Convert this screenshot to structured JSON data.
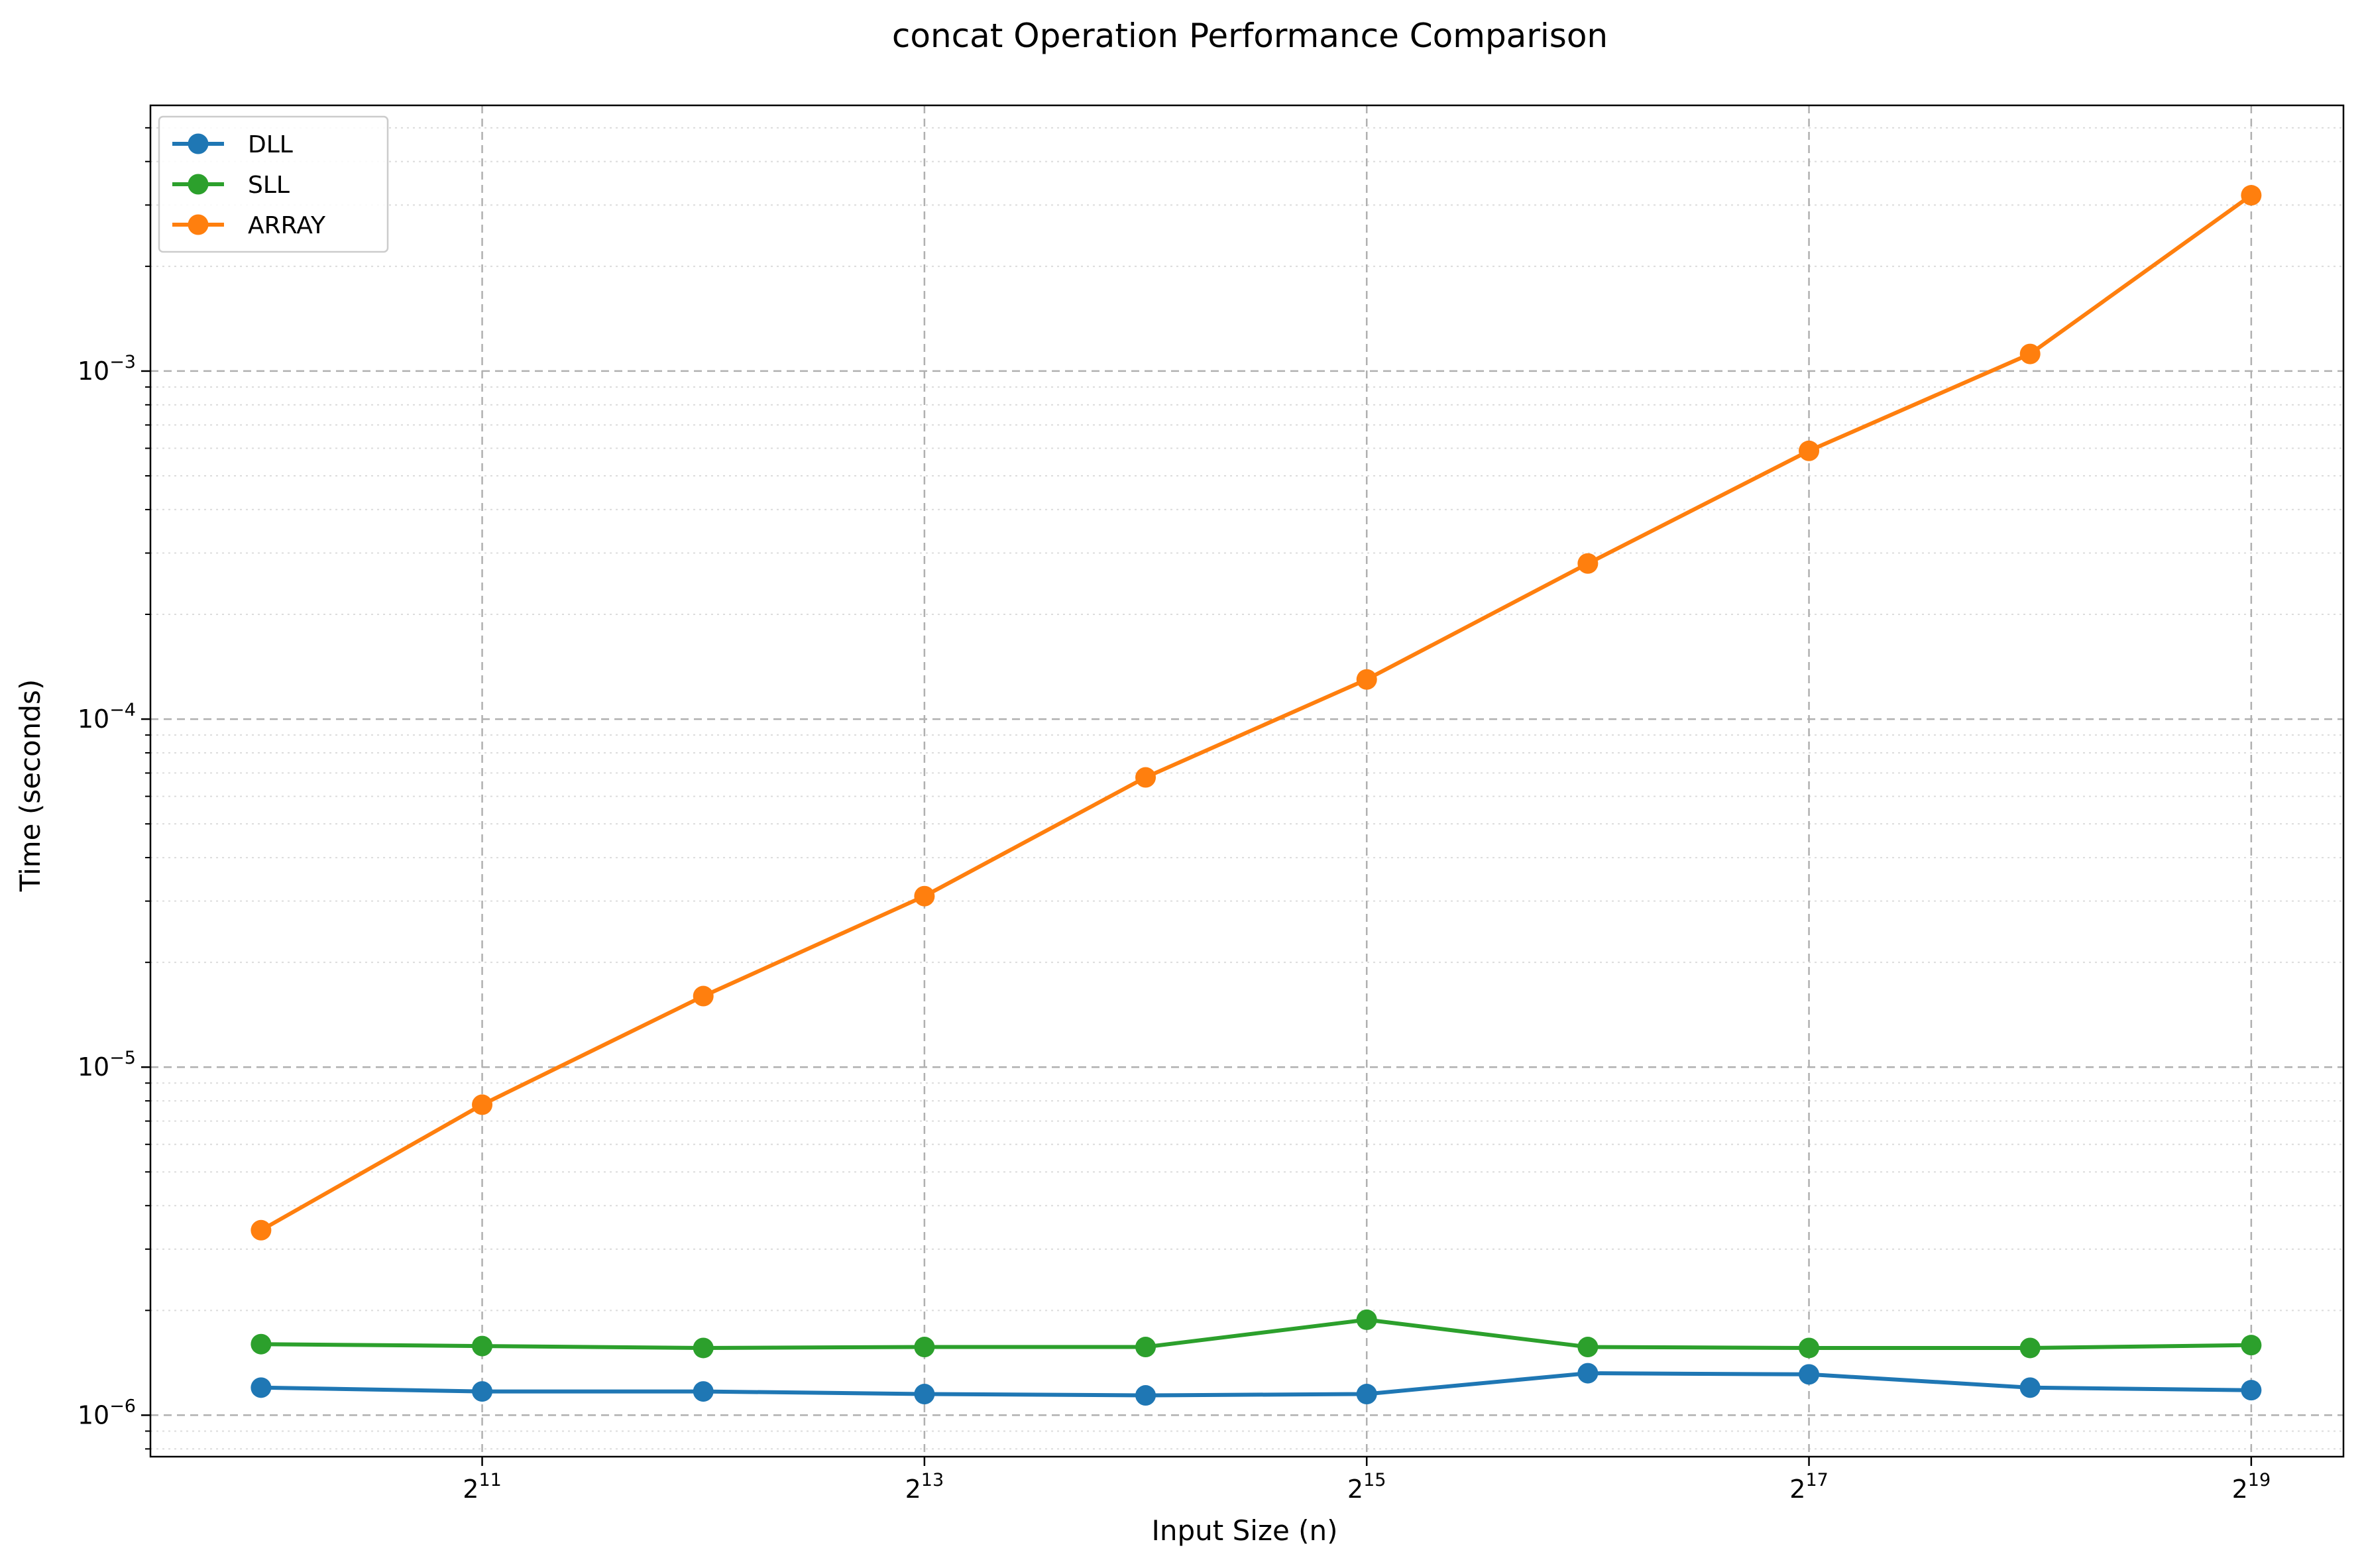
{
  "chart_data": {
    "type": "line",
    "title": "concat Operation Performance Comparison",
    "xlabel": "Input Size (n)",
    "ylabel": "Time (seconds)",
    "x_scale": "log2",
    "y_scale": "log10",
    "x": [
      1024,
      2048,
      4096,
      8192,
      16384,
      32768,
      65536,
      131072,
      262144,
      524288
    ],
    "xlim": [
      724,
      700000
    ],
    "ylim": [
      7.6e-07,
      0.0058
    ],
    "x_ticks": [
      {
        "value": 2048,
        "base": "2",
        "exp": "11"
      },
      {
        "value": 8192,
        "base": "2",
        "exp": "13"
      },
      {
        "value": 32768,
        "base": "2",
        "exp": "15"
      },
      {
        "value": 131072,
        "base": "2",
        "exp": "17"
      },
      {
        "value": 524288,
        "base": "2",
        "exp": "19"
      }
    ],
    "y_ticks": [
      {
        "value": 1e-06,
        "base": "10",
        "exp": "−6"
      },
      {
        "value": 1e-05,
        "base": "10",
        "exp": "−5"
      },
      {
        "value": 0.0001,
        "base": "10",
        "exp": "−4"
      },
      {
        "value": 0.001,
        "base": "10",
        "exp": "−3"
      }
    ],
    "grid": true,
    "legend_position": "top-left",
    "series": [
      {
        "name": "DLL",
        "color": "#1f77b4",
        "values": [
          1.2e-06,
          1.17e-06,
          1.17e-06,
          1.15e-06,
          1.14e-06,
          1.15e-06,
          1.32e-06,
          1.31e-06,
          1.2e-06,
          1.18e-06
        ]
      },
      {
        "name": "SLL",
        "color": "#2ca02c",
        "values": [
          1.6e-06,
          1.58e-06,
          1.56e-06,
          1.57e-06,
          1.57e-06,
          1.88e-06,
          1.57e-06,
          1.56e-06,
          1.56e-06,
          1.59e-06
        ]
      },
      {
        "name": "ARRAY",
        "color": "#ff7f0e",
        "values": [
          3.4e-06,
          7.8e-06,
          1.6e-05,
          3.1e-05,
          6.8e-05,
          0.00013,
          0.00028,
          0.00059,
          0.00112,
          0.0032
        ]
      }
    ]
  }
}
